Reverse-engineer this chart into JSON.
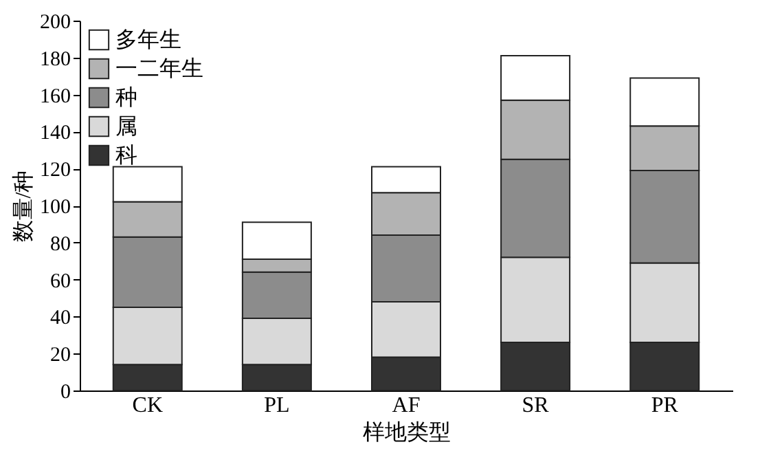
{
  "chart_data": {
    "type": "bar",
    "stacked": true,
    "xlabel": "样地类型",
    "ylabel": "数量/种",
    "categories": [
      "CK",
      "PL",
      "AF",
      "SR",
      "PR"
    ],
    "series": [
      {
        "name": "科",
        "color": "#333333",
        "values": [
          14,
          14,
          18,
          26,
          26
        ]
      },
      {
        "name": "属",
        "color": "#d9d9d9",
        "values": [
          31,
          25,
          30,
          46,
          43
        ]
      },
      {
        "name": "种",
        "color": "#8c8c8c",
        "values": [
          38,
          25,
          36,
          53,
          50
        ]
      },
      {
        "name": "一二年生",
        "color": "#b3b3b3",
        "values": [
          19,
          7,
          23,
          32,
          24
        ]
      },
      {
        "name": "多年生",
        "color": "#ffffff",
        "values": [
          19,
          20,
          14,
          24,
          26
        ]
      }
    ],
    "ylim": [
      0,
      200
    ],
    "yticks": [
      0,
      20,
      40,
      60,
      80,
      100,
      120,
      140,
      160,
      180,
      200
    ],
    "grid": false,
    "legend": "top left"
  }
}
